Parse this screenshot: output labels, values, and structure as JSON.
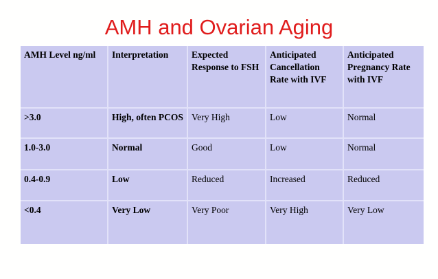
{
  "slide": {
    "title": "AMH and Ovarian Aging"
  },
  "table": {
    "columns": [
      "AMH Level ng/ml",
      "Interpretation",
      "Expected Response to FSH",
      "Anticipated Cancellation Rate with IVF",
      "Anticipated Pregnancy Rate with IVF"
    ],
    "rows": [
      [
        ">3.0",
        "High, often PCOS",
        "Very High",
        "Low",
        "Normal"
      ],
      [
        "1.0-3.0",
        "Normal",
        "Good",
        "Low",
        "Normal"
      ],
      [
        "0.4-0.9",
        "Low",
        "Reduced",
        "Increased",
        "Reduced"
      ],
      [
        "<0.4",
        "Very Low",
        "Very Poor",
        "Very High",
        "Very Low"
      ]
    ]
  },
  "colors": {
    "title_red": "#e01c1c",
    "table_background": "#cac9f0",
    "divider": "#e2e2f9",
    "text": "#000000",
    "page_background": "#fffffe"
  }
}
